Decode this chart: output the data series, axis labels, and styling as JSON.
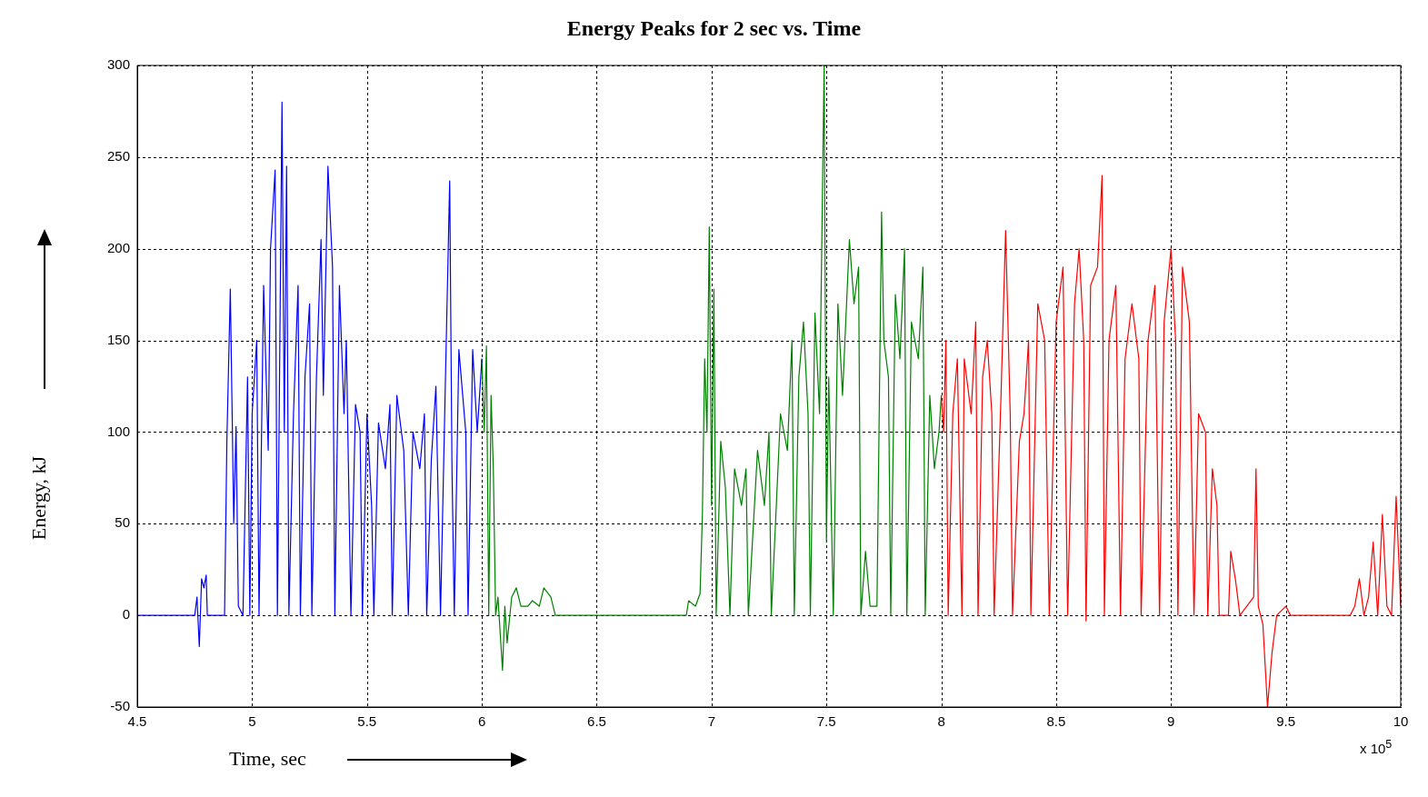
{
  "chart_data": {
    "type": "line",
    "title": "Energy Peaks for 2 sec vs. Time",
    "xlabel": "Time, sec",
    "ylabel": "Energy, kJ",
    "annotations": [
      "x 10$^{5}$"
    ],
    "xlim": [
      4.5,
      10
    ],
    "xticks": [
      4.5,
      5,
      5.5,
      6,
      6.5,
      7,
      7.5,
      8,
      8.5,
      9,
      9.5,
      10
    ],
    "ylim": [
      -50,
      300
    ],
    "yticks": [
      -50,
      0,
      50,
      100,
      150,
      200,
      250,
      300
    ],
    "grid": true,
    "marker": "none",
    "line_style": "solid",
    "legend": false,
    "series": [
      {
        "color": "#0000ff",
        "x": [
          4.5,
          4.75,
          4.76,
          4.77,
          4.78,
          4.79,
          4.8,
          4.805,
          4.88,
          4.89,
          4.905,
          4.92,
          4.93,
          4.94,
          4.96,
          4.98,
          4.99,
          5.0,
          5.02,
          5.03,
          5.05,
          5.07,
          5.08,
          5.1,
          5.11,
          5.13,
          5.14,
          5.15,
          5.16,
          5.18,
          5.2,
          5.21,
          5.23,
          5.25,
          5.26,
          5.28,
          5.3,
          5.31,
          5.33,
          5.35,
          5.36,
          5.38,
          5.4,
          5.41,
          5.43,
          5.45,
          5.47,
          5.48,
          5.5,
          5.52,
          5.53,
          5.55,
          5.58,
          5.6,
          5.61,
          5.63,
          5.66,
          5.68,
          5.7,
          5.73,
          5.75,
          5.76,
          5.78,
          5.8,
          5.82,
          5.84,
          5.86,
          5.87,
          5.88,
          5.9,
          5.93,
          5.94,
          5.96,
          5.98,
          6.0
        ],
        "values": [
          0,
          0,
          10,
          -17,
          20,
          15,
          22,
          0,
          0,
          95,
          178,
          50,
          103,
          5,
          0,
          130,
          0,
          110,
          150,
          0,
          180,
          90,
          200,
          243,
          0,
          280,
          100,
          245,
          0,
          110,
          180,
          0,
          130,
          170,
          0,
          130,
          205,
          120,
          245,
          190,
          0,
          180,
          110,
          150,
          0,
          115,
          100,
          0,
          110,
          60,
          0,
          105,
          80,
          115,
          0,
          120,
          90,
          0,
          100,
          80,
          110,
          0,
          85,
          125,
          0,
          120,
          237,
          80,
          0,
          145,
          100,
          0,
          145,
          100,
          140
        ]
      },
      {
        "color": "#008000",
        "x": [
          6.0,
          6.01,
          6.02,
          6.03,
          6.04,
          6.05,
          6.06,
          6.07,
          6.08,
          6.09,
          6.1,
          6.11,
          6.13,
          6.15,
          6.17,
          6.2,
          6.22,
          6.25,
          6.27,
          6.3,
          6.32,
          6.89,
          6.9,
          6.93,
          6.95,
          6.96,
          6.97,
          6.98,
          6.99,
          7.0,
          7.01,
          7.02,
          7.04,
          7.06,
          7.08,
          7.1,
          7.13,
          7.15,
          7.16,
          7.2,
          7.23,
          7.25,
          7.26,
          7.3,
          7.33,
          7.35,
          7.36,
          7.38,
          7.4,
          7.42,
          7.43,
          7.45,
          7.47,
          7.49,
          7.5,
          7.51,
          7.53,
          7.55,
          7.57,
          7.6,
          7.62,
          7.64,
          7.65,
          7.67,
          7.69,
          7.72,
          7.74,
          7.75,
          7.77,
          7.78,
          7.8,
          7.82,
          7.84,
          7.85,
          7.87,
          7.9,
          7.92,
          7.93,
          7.95,
          7.97,
          7.99,
          8.0
        ],
        "values": [
          140,
          100,
          147,
          0,
          120,
          80,
          0,
          10,
          -10,
          -30,
          5,
          -15,
          10,
          15,
          5,
          5,
          8,
          5,
          15,
          10,
          0,
          0,
          8,
          5,
          12,
          55,
          140,
          100,
          212,
          60,
          178,
          0,
          95,
          70,
          0,
          80,
          60,
          80,
          0,
          90,
          60,
          100,
          0,
          110,
          90,
          150,
          0,
          130,
          160,
          110,
          0,
          165,
          110,
          300,
          40,
          130,
          0,
          170,
          120,
          205,
          170,
          190,
          0,
          35,
          5,
          5,
          220,
          150,
          130,
          0,
          175,
          140,
          200,
          0,
          160,
          140,
          190,
          0,
          120,
          80,
          100,
          120
        ]
      },
      {
        "color": "#ff0000",
        "x": [
          8.0,
          8.01,
          8.02,
          8.03,
          8.05,
          8.07,
          8.09,
          8.1,
          8.13,
          8.15,
          8.16,
          8.18,
          8.2,
          8.22,
          8.23,
          8.26,
          8.28,
          8.3,
          8.31,
          8.34,
          8.36,
          8.38,
          8.39,
          8.42,
          8.45,
          8.47,
          8.5,
          8.53,
          8.55,
          8.58,
          8.6,
          8.62,
          8.63,
          8.65,
          8.68,
          8.7,
          8.71,
          8.73,
          8.76,
          8.78,
          8.8,
          8.83,
          8.86,
          8.87,
          8.9,
          8.93,
          8.95,
          8.97,
          9.0,
          9.02,
          9.03,
          9.05,
          9.08,
          9.1,
          9.12,
          9.15,
          9.16,
          9.18,
          9.2,
          9.21,
          9.25,
          9.26,
          9.28,
          9.3,
          9.36,
          9.37,
          9.38,
          9.39,
          9.4,
          9.42,
          9.44,
          9.46,
          9.5,
          9.52,
          9.78,
          9.8,
          9.82,
          9.84,
          9.86,
          9.88,
          9.9,
          9.92,
          9.94,
          9.96,
          9.98,
          10.0
        ],
        "values": [
          120,
          100,
          150,
          0,
          110,
          140,
          0,
          140,
          110,
          160,
          0,
          130,
          150,
          110,
          0,
          120,
          210,
          110,
          0,
          95,
          110,
          150,
          0,
          170,
          150,
          0,
          160,
          190,
          0,
          170,
          200,
          150,
          -3,
          180,
          190,
          240,
          0,
          150,
          180,
          0,
          140,
          170,
          140,
          0,
          150,
          180,
          0,
          160,
          200,
          150,
          0,
          190,
          160,
          0,
          110,
          100,
          0,
          80,
          60,
          0,
          0,
          35,
          20,
          0,
          10,
          80,
          5,
          0,
          -5,
          -50,
          -20,
          0,
          5,
          0,
          0,
          5,
          20,
          0,
          10,
          40,
          0,
          55,
          5,
          0,
          65,
          5
        ]
      }
    ]
  }
}
